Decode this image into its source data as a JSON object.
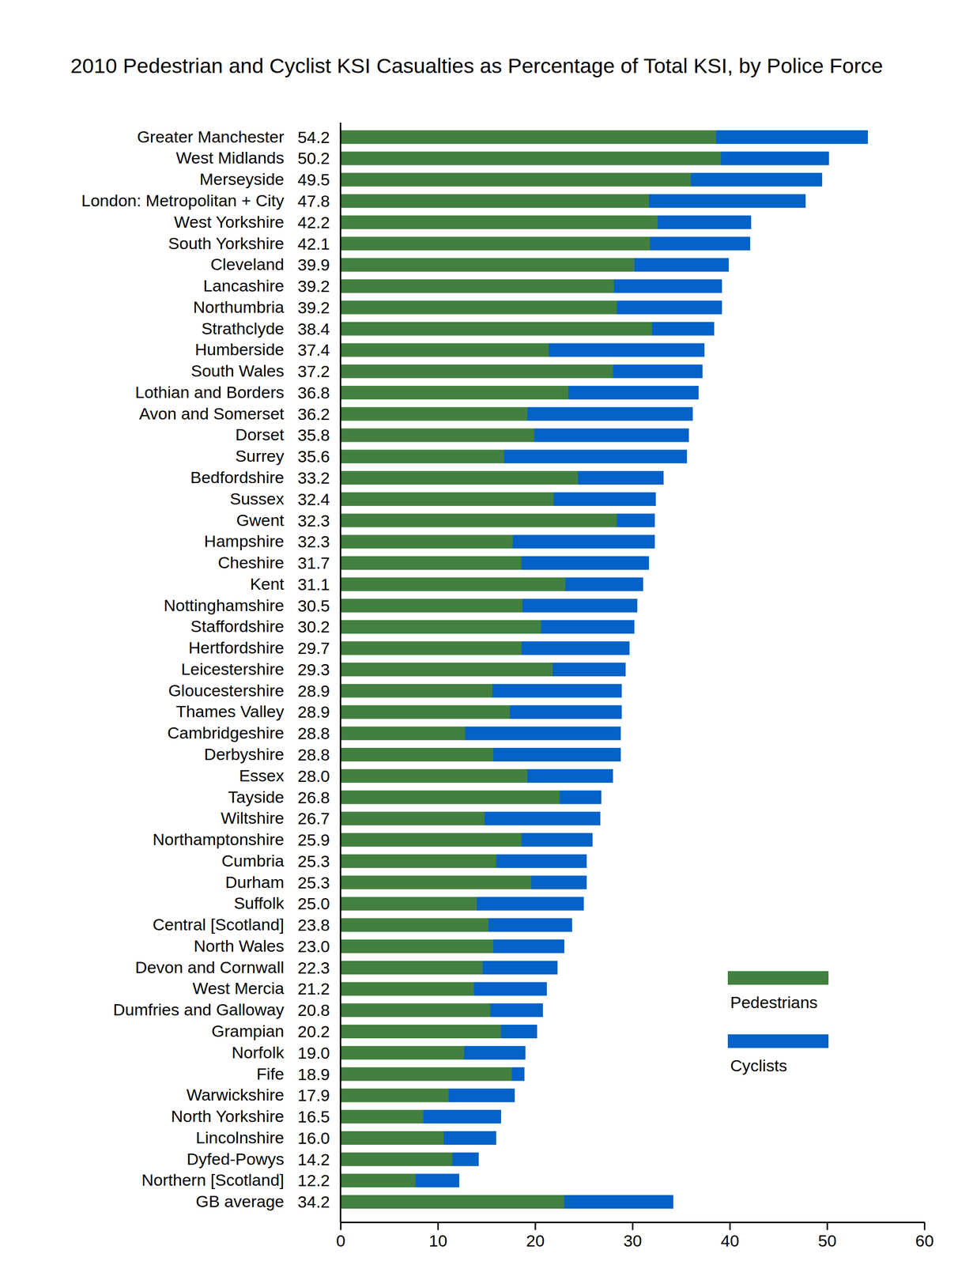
{
  "chart_data": {
    "type": "bar",
    "title": "2010 Pedestrian and Cyclist KSI Casualties as Percentage of Total KSI, by Police Force",
    "orientation": "horizontal",
    "stacked": true,
    "grid": false,
    "legend": "lower right",
    "categories": [
      "Greater Manchester",
      "West Midlands",
      "Merseyside",
      "London: Metropolitan + City",
      "West Yorkshire",
      "South Yorkshire",
      "Cleveland",
      "Lancashire",
      "Northumbria",
      "Strathclyde",
      "Humberside",
      "South Wales",
      "Lothian and Borders",
      "Avon and Somerset",
      "Dorset",
      "Surrey",
      "Bedfordshire",
      "Sussex",
      "Gwent",
      "Hampshire",
      "Cheshire",
      "Kent",
      "Nottinghamshire",
      "Staffordshire",
      "Hertfordshire",
      "Leicestershire",
      "Gloucestershire",
      "Thames Valley",
      "Cambridgeshire",
      "Derbyshire",
      "Essex",
      "Tayside",
      "Wiltshire",
      "Northamptonshire",
      "Cumbria",
      "Durham",
      "Suffolk",
      "Central [Scotland]",
      "North Wales",
      "Devon and Cornwall",
      "West Mercia",
      "Dumfries and Galloway",
      "Grampian",
      "Norfolk",
      "Fife",
      "Warwickshire",
      "North Yorkshire",
      "Lincolnshire",
      "Dyfed-Powys",
      "Northern [Scotland]",
      "GB average"
    ],
    "total_labels": [
      "54.2",
      "50.2",
      "49.5",
      "47.8",
      "42.2",
      "42.1",
      "39.9",
      "39.2",
      "39.2",
      "38.4",
      "37.4",
      "37.2",
      "36.8",
      "36.2",
      "35.8",
      "35.6",
      "33.2",
      "32.4",
      "32.3",
      "32.3",
      "31.7",
      "31.1",
      "30.5",
      "30.2",
      "29.7",
      "29.3",
      "28.9",
      "28.9",
      "28.8",
      "28.8",
      "28.0",
      "26.8",
      "26.7",
      "25.9",
      "25.3",
      "25.3",
      "25.0",
      "23.8",
      "23.0",
      "22.3",
      "21.2",
      "20.8",
      "20.2",
      "19.0",
      "18.9",
      "17.9",
      "16.5",
      "16.0",
      "14.2",
      "12.2",
      "34.2"
    ],
    "series": [
      {
        "name": "Pedestrians",
        "color": "#43803f",
        "values": [
          38.6,
          39.1,
          36.0,
          31.7,
          32.6,
          31.8,
          30.2,
          28.1,
          28.4,
          32.0,
          21.4,
          28.0,
          23.4,
          19.2,
          19.9,
          16.8,
          24.4,
          21.9,
          28.4,
          17.7,
          18.6,
          23.1,
          18.7,
          20.6,
          18.6,
          21.8,
          15.6,
          17.4,
          12.8,
          15.7,
          19.2,
          22.5,
          14.8,
          18.6,
          16.0,
          19.6,
          14.0,
          15.2,
          15.7,
          14.6,
          13.7,
          15.4,
          16.5,
          12.7,
          17.6,
          11.1,
          8.5,
          10.6,
          11.5,
          7.7,
          23.0
        ]
      },
      {
        "name": "Cyclists",
        "color": "#0562c8",
        "values": [
          15.6,
          11.1,
          13.5,
          16.1,
          9.6,
          10.3,
          9.7,
          11.1,
          10.8,
          6.4,
          16.0,
          9.2,
          13.4,
          17.0,
          15.9,
          18.8,
          8.8,
          10.5,
          3.9,
          14.6,
          13.1,
          8.0,
          11.8,
          9.6,
          11.1,
          7.5,
          13.3,
          11.5,
          16.0,
          13.1,
          8.8,
          4.3,
          11.9,
          7.3,
          9.3,
          5.7,
          11.0,
          8.6,
          7.3,
          7.7,
          7.5,
          5.4,
          3.7,
          6.3,
          1.3,
          6.8,
          8.0,
          5.4,
          2.7,
          4.5,
          11.2
        ]
      }
    ],
    "xlim": [
      0,
      60
    ],
    "xticks": [
      0,
      10,
      20,
      30,
      40,
      50,
      60
    ]
  }
}
